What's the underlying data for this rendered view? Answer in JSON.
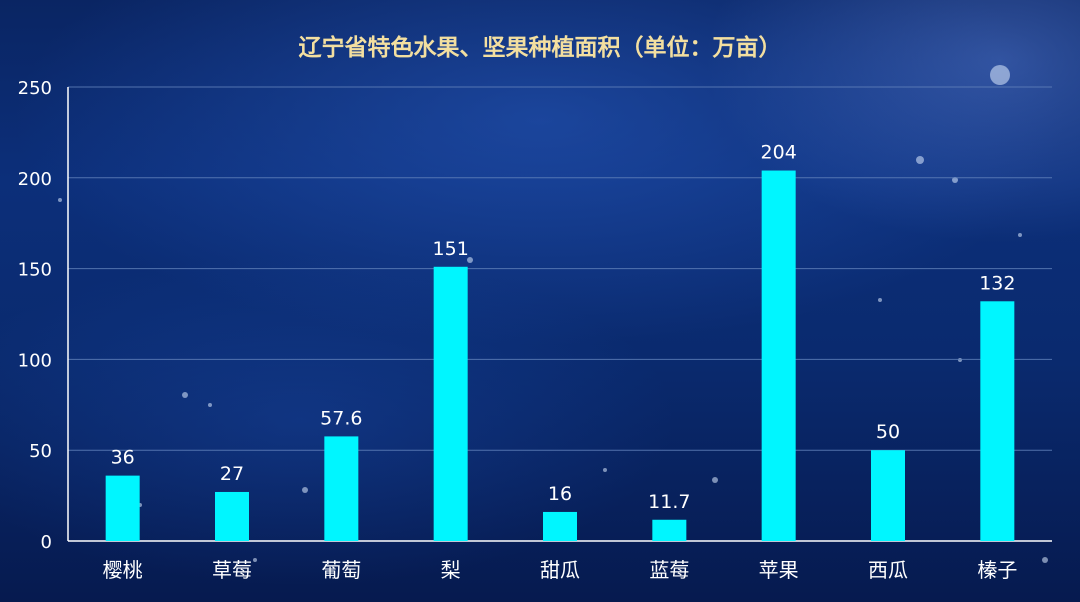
{
  "chart_data": {
    "type": "bar",
    "title": "辽宁省特色水果、坚果种植面积（单位：万亩）",
    "categories": [
      "樱桃",
      "草莓",
      "葡萄",
      "梨",
      "甜瓜",
      "蓝莓",
      "苹果",
      "西瓜",
      "榛子"
    ],
    "values": [
      36,
      27,
      57.6,
      151,
      16,
      11.7,
      204,
      50,
      132
    ],
    "value_labels": [
      "36",
      "27",
      "57.6",
      "151",
      "16",
      "11.7",
      "204",
      "50",
      "132"
    ],
    "ylim": [
      0,
      250
    ],
    "yticks": [
      0,
      50,
      100,
      150,
      200,
      250
    ],
    "grid": true,
    "legend": "none"
  },
  "colors": {
    "bar": "#00f6ff",
    "gridline": "#5f7fb8",
    "axis": "#ffffff",
    "title": "#f3dfa0"
  }
}
